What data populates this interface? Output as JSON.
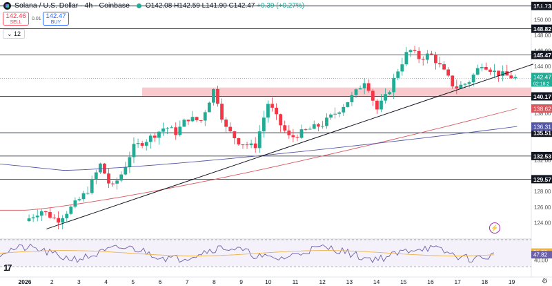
{
  "header": {
    "title": "Solana / U.S. Dollar · 4h · Coinbase",
    "ohlc": "O142.08 H142.59 L141.90 C142.47",
    "change": "+0.39 (+0.27%)"
  },
  "trade": {
    "sell_price": "142.46",
    "sell_label": "SELL",
    "spread": "0.01",
    "buy_price": "142.47",
    "buy_label": "BUY"
  },
  "interval_tag": "12",
  "currency": "USD",
  "countdown": "02:18:2",
  "colors": {
    "up": "#22ab94",
    "down": "#f23645",
    "zone": "#f5b7bc",
    "ma_fast": "#d9575f",
    "ma_slow": "#5457a6",
    "rsi": "#6b5fa8",
    "rsi_ma": "#f0b347",
    "axis_text": "#131722"
  },
  "chart_data": {
    "type": "candlestick",
    "x_ticks": [
      "2026",
      "2",
      "3",
      "4",
      "5",
      "6",
      "7",
      "8",
      "9",
      "10",
      "11",
      "12",
      "13",
      "14",
      "15",
      "16",
      "17",
      "18",
      "19"
    ],
    "y_ticks": [
      124,
      126,
      128,
      132,
      138,
      144,
      146,
      148,
      150
    ],
    "ylim": [
      122,
      152.5
    ],
    "horizontal_levels": [
      151.73,
      148.82,
      145.47,
      140.17,
      135.51,
      132.53,
      129.57
    ],
    "level_labels": [
      "151.73",
      "148.82",
      "145.47",
      "140.17",
      "135.51",
      "132.53",
      "129.57"
    ],
    "current_price": 142.47,
    "current_price_label": "142.47",
    "ma_fast_label": "138.62",
    "ma_fast_value": 138.62,
    "ma_slow_label": "136.31",
    "ma_slow_value": 136.31,
    "resistance_zone": [
      140.17,
      141.3
    ],
    "trendline": {
      "from": [
        0.8,
        123.2
      ],
      "to": [
        18.8,
        144.3
      ]
    },
    "rsi": {
      "ticks": [
        "51.53",
        "47.82",
        "40.00"
      ],
      "range": [
        20,
        80
      ]
    }
  }
}
